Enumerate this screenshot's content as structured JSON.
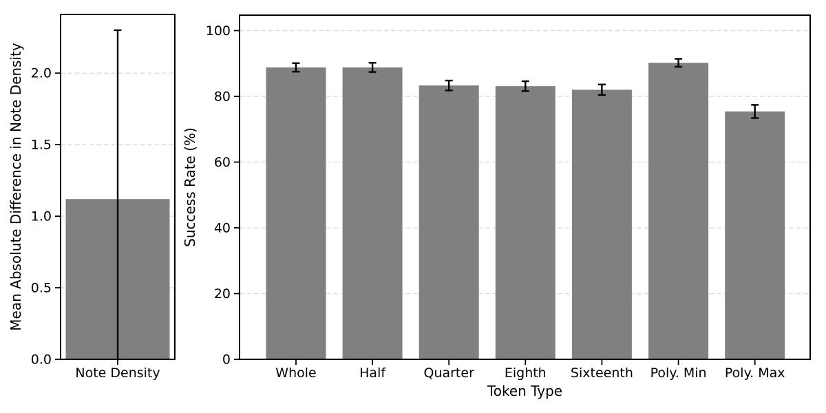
{
  "figure": {
    "background": "#ffffff",
    "bar_color": "#808080",
    "grid_color": "#d9d9d9",
    "spine_color": "#000000",
    "error_color": "#000000"
  },
  "chart_data": [
    {
      "type": "bar",
      "title": "",
      "categories": [
        "Note Density"
      ],
      "values": [
        1.12
      ],
      "errors": [
        1.18
      ],
      "xlabel": "",
      "ylabel": "Mean Absolute Difference in Note Density",
      "yticks": [
        "0.0",
        "0.5",
        "1.0",
        "1.5",
        "2.0"
      ],
      "ytick_values": [
        0,
        0.5,
        1.0,
        1.5,
        2.0
      ],
      "ylim": [
        0,
        2.41
      ],
      "grid": "horizontal-dashed",
      "legend": null,
      "notes": "single gray bar, black error bar; lower error end clipped at y=0, upper cap at 2.30"
    },
    {
      "type": "bar",
      "title": "",
      "categories": [
        "Whole",
        "Half",
        "Quarter",
        "Eighth",
        "Sixteenth",
        "Poly. Min",
        "Poly. Max"
      ],
      "values": [
        88.8,
        88.8,
        83.3,
        83.1,
        82.0,
        90.2,
        75.4
      ],
      "errors": [
        1.3,
        1.4,
        1.5,
        1.5,
        1.6,
        1.2,
        2.0
      ],
      "xlabel": "Token Type",
      "ylabel": "Success Rate (%)",
      "yticks": [
        "0",
        "20",
        "40",
        "60",
        "80",
        "100"
      ],
      "ytick_values": [
        0,
        20,
        40,
        60,
        80,
        100
      ],
      "ylim": [
        0,
        104.7
      ],
      "grid": "horizontal-dashed",
      "legend": null,
      "notes": "seven gray bars with black error bars and caps"
    }
  ]
}
